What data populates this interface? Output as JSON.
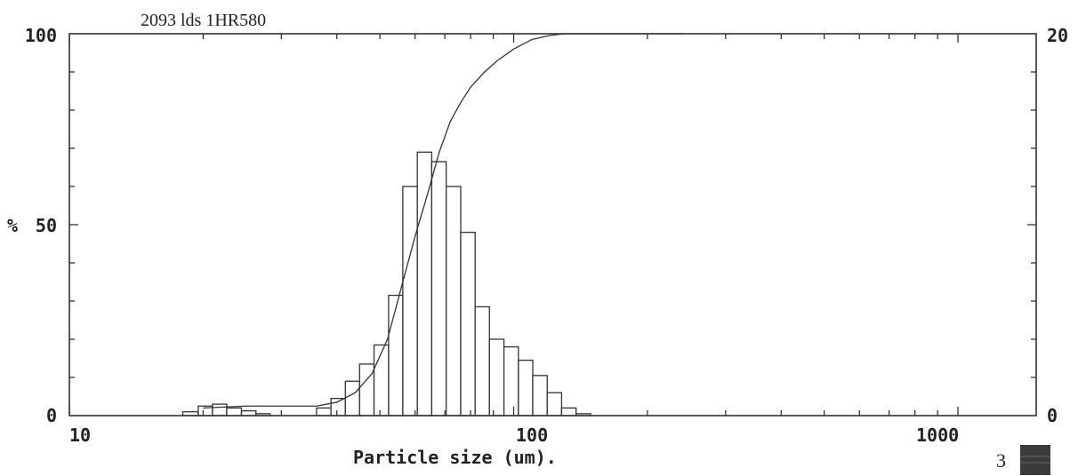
{
  "chart_data": {
    "type": "bar",
    "title": "2093  lds 1HR580",
    "xlabel": "Particle size (um).",
    "ylabel_left": "%",
    "x_scale": "log",
    "xlim": [
      10,
      1500
    ],
    "ylim_left": [
      0,
      100
    ],
    "ylim_right": [
      0,
      20
    ],
    "x_tick_labels": [
      "10",
      "100",
      "1000"
    ],
    "y_left_tick_labels": [
      "0",
      "50",
      "100"
    ],
    "y_right_tick_labels": [
      "0",
      "20"
    ],
    "grid": false,
    "series": [
      {
        "kind": "histogram",
        "axis": "right",
        "bins": [
          {
            "x0": 18.0,
            "x1": 19.5,
            "value": 0.2
          },
          {
            "x0": 19.5,
            "x1": 21.0,
            "value": 0.5
          },
          {
            "x0": 21.0,
            "x1": 22.6,
            "value": 0.6
          },
          {
            "x0": 22.6,
            "x1": 24.4,
            "value": 0.4
          },
          {
            "x0": 24.4,
            "x1": 26.3,
            "value": 0.25
          },
          {
            "x0": 26.3,
            "x1": 28.3,
            "value": 0.1
          },
          {
            "x0": 36.0,
            "x1": 38.8,
            "value": 0.4
          },
          {
            "x0": 38.8,
            "x1": 41.8,
            "value": 0.9
          },
          {
            "x0": 41.8,
            "x1": 45.0,
            "value": 1.8
          },
          {
            "x0": 45.0,
            "x1": 48.5,
            "value": 2.7
          },
          {
            "x0": 48.5,
            "x1": 52.3,
            "value": 3.7
          },
          {
            "x0": 52.3,
            "x1": 56.3,
            "value": 6.3
          },
          {
            "x0": 56.3,
            "x1": 60.7,
            "value": 12.0
          },
          {
            "x0": 60.7,
            "x1": 65.4,
            "value": 13.8
          },
          {
            "x0": 65.4,
            "x1": 70.5,
            "value": 13.3
          },
          {
            "x0": 70.5,
            "x1": 76.0,
            "value": 12.0
          },
          {
            "x0": 76.0,
            "x1": 81.9,
            "value": 9.6
          },
          {
            "x0": 81.9,
            "x1": 88.2,
            "value": 5.7
          },
          {
            "x0": 88.2,
            "x1": 95.1,
            "value": 4.0
          },
          {
            "x0": 95.1,
            "x1": 102.5,
            "value": 3.6
          },
          {
            "x0": 102.5,
            "x1": 110.4,
            "value": 2.9
          },
          {
            "x0": 110.4,
            "x1": 119.0,
            "value": 2.1
          },
          {
            "x0": 119.0,
            "x1": 128.2,
            "value": 1.2
          },
          {
            "x0": 128.2,
            "x1": 138.2,
            "value": 0.4
          },
          {
            "x0": 138.2,
            "x1": 149.0,
            "value": 0.1
          }
        ]
      },
      {
        "kind": "cumulative",
        "axis": "left",
        "x": [
          20,
          25,
          30,
          36,
          40,
          44,
          48,
          52,
          56,
          60,
          64,
          68,
          72,
          76,
          80,
          86,
          92,
          100,
          110,
          120,
          130,
          140,
          160,
          200,
          240
        ],
        "y": [
          2,
          2.5,
          2.5,
          2.5,
          3.5,
          6,
          11,
          20,
          34,
          47,
          58,
          69,
          77,
          82,
          86,
          90,
          93,
          96,
          98.5,
          99.5,
          100,
          100,
          100,
          100,
          100
        ]
      }
    ],
    "page_number": "3"
  }
}
